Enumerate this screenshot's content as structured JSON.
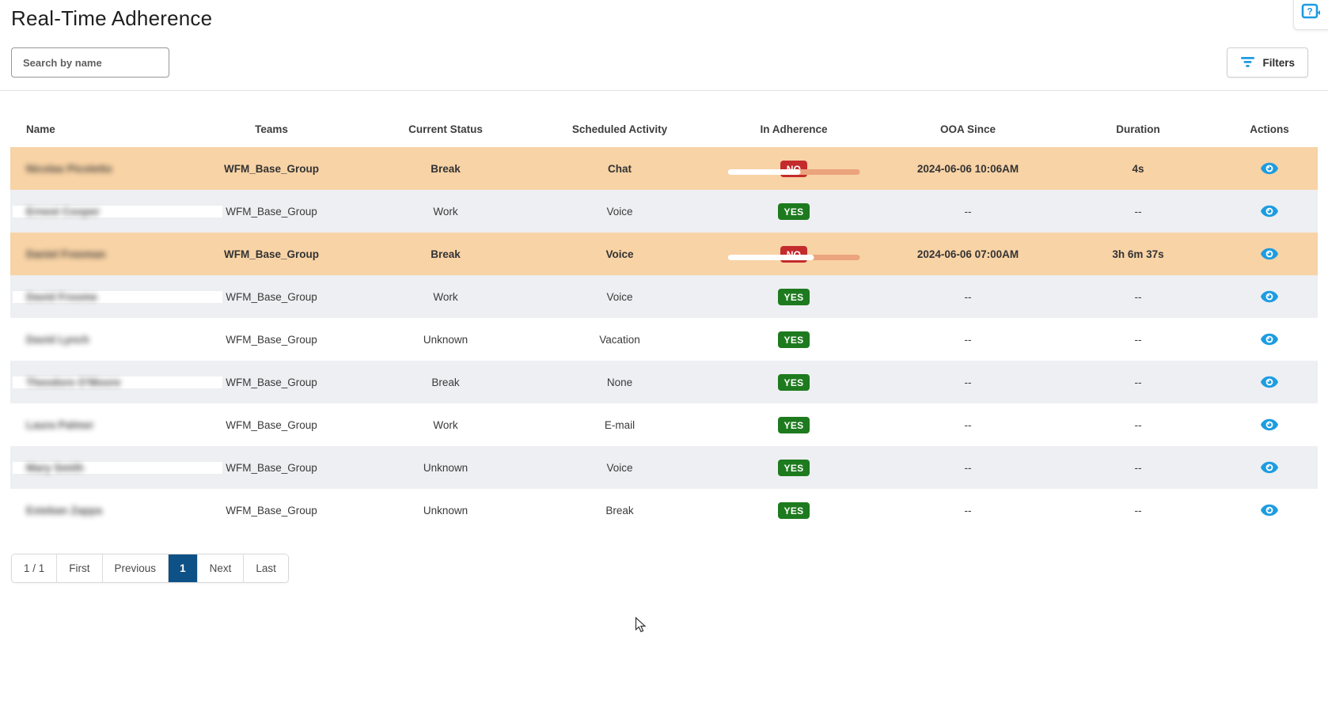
{
  "page": {
    "title": "Real-Time Adherence"
  },
  "toolbar": {
    "search_placeholder": "Search by name",
    "filters_label": "Filters"
  },
  "table": {
    "columns": [
      "Name",
      "Teams",
      "Current Status",
      "Scheduled Activity",
      "In Adherence",
      "OOA Since",
      "Duration",
      "Actions"
    ],
    "rows": [
      {
        "name": "Nicolas Picoletto",
        "team": "WFM_Base_Group",
        "status": "Break",
        "activity": "Chat",
        "adherence": "NO",
        "highlighted": true,
        "bar_percent": 55,
        "ooa_since": "2024-06-06 10:06AM",
        "duration": "4s"
      },
      {
        "name": "Ernest Cooper",
        "team": "WFM_Base_Group",
        "status": "Work",
        "activity": "Voice",
        "adherence": "YES",
        "highlighted": false,
        "ooa_since": "--",
        "duration": "--"
      },
      {
        "name": "Daniel Freeman",
        "team": "WFM_Base_Group",
        "status": "Break",
        "activity": "Voice",
        "adherence": "NO",
        "highlighted": true,
        "bar_percent": 65,
        "ooa_since": "2024-06-06 07:00AM",
        "duration": "3h 6m 37s"
      },
      {
        "name": "David Froome",
        "team": "WFM_Base_Group",
        "status": "Work",
        "activity": "Voice",
        "adherence": "YES",
        "highlighted": false,
        "ooa_since": "--",
        "duration": "--"
      },
      {
        "name": "David Lynch",
        "team": "WFM_Base_Group",
        "status": "Unknown",
        "activity": "Vacation",
        "adherence": "YES",
        "highlighted": false,
        "ooa_since": "--",
        "duration": "--"
      },
      {
        "name": "Theodore O'Moore",
        "team": "WFM_Base_Group",
        "status": "Break",
        "activity": "None",
        "adherence": "YES",
        "highlighted": false,
        "ooa_since": "--",
        "duration": "--"
      },
      {
        "name": "Laura Palmer",
        "team": "WFM_Base_Group",
        "status": "Work",
        "activity": "E-mail",
        "adherence": "YES",
        "highlighted": false,
        "ooa_since": "--",
        "duration": "--"
      },
      {
        "name": "Mary Smith",
        "team": "WFM_Base_Group",
        "status": "Unknown",
        "activity": "Voice",
        "adherence": "YES",
        "highlighted": false,
        "ooa_since": "--",
        "duration": "--"
      },
      {
        "name": "Esteban Zappa",
        "team": "WFM_Base_Group",
        "status": "Unknown",
        "activity": "Break",
        "adherence": "YES",
        "highlighted": false,
        "ooa_since": "--",
        "duration": "--"
      }
    ]
  },
  "pagination": {
    "indicator": "1 / 1",
    "first": "First",
    "previous": "Previous",
    "current": "1",
    "next": "Next",
    "last": "Last"
  },
  "colors": {
    "highlight_row": "#f8d3a6",
    "stripe_row": "#edeff2",
    "badge_no": "#c42b2d",
    "badge_yes": "#1e7a1e",
    "icon_blue": "#1d9ce0",
    "pagination_active": "#0e5187",
    "progress_remainder": "#eba47d"
  }
}
